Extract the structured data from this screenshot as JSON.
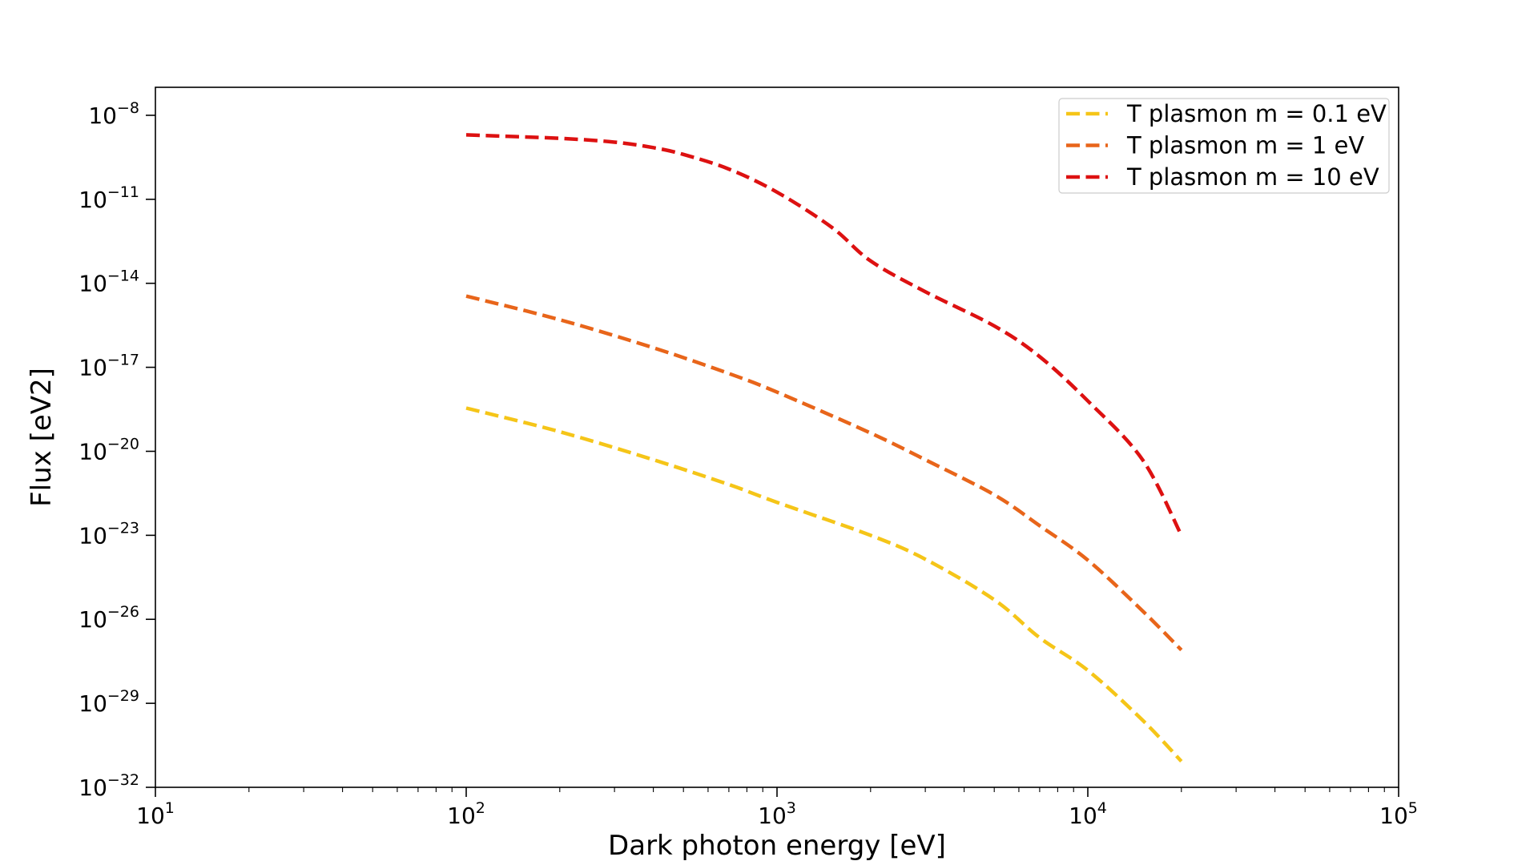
{
  "chart_data": {
    "type": "line",
    "title": "",
    "xlabel": "Dark photon energy [eV]",
    "ylabel": "Flux [eV2]",
    "xscale": "log",
    "yscale": "log",
    "xlim": [
      10,
      100000
    ],
    "ylim": [
      1e-32,
      1e-07
    ],
    "x_tick_labels": [
      {
        "value": 10,
        "base": "10",
        "exp": "1"
      },
      {
        "value": 100,
        "base": "10",
        "exp": "2"
      },
      {
        "value": 1000,
        "base": "10",
        "exp": "3"
      },
      {
        "value": 10000,
        "base": "10",
        "exp": "4"
      },
      {
        "value": 100000,
        "base": "10",
        "exp": "5"
      }
    ],
    "y_tick_labels": [
      {
        "value": 1e-08,
        "base": "10",
        "exp": "−8"
      },
      {
        "value": 1e-11,
        "base": "10",
        "exp": "−11"
      },
      {
        "value": 1e-14,
        "base": "10",
        "exp": "−14"
      },
      {
        "value": 1e-17,
        "base": "10",
        "exp": "−17"
      },
      {
        "value": 1e-20,
        "base": "10",
        "exp": "−20"
      },
      {
        "value": 1e-23,
        "base": "10",
        "exp": "−23"
      },
      {
        "value": 1e-26,
        "base": "10",
        "exp": "−26"
      },
      {
        "value": 1e-29,
        "base": "10",
        "exp": "−29"
      },
      {
        "value": 1e-32,
        "base": "10",
        "exp": "−32"
      }
    ],
    "grid": false,
    "legend_position": "top-right",
    "series": [
      {
        "name": "T plasmon m = 0.1 eV",
        "color": "#f5c518",
        "linestyle": "dashed",
        "x": [
          100,
          200,
          400,
          700,
          1000,
          2000,
          3000,
          5000,
          7000,
          10000,
          15000,
          20000
        ],
        "y": [
          3.5e-19,
          5e-20,
          5e-21,
          6.5e-22,
          1.5e-22,
          1e-23,
          1.4e-24,
          5e-26,
          2.2e-27,
          1.5e-28,
          2.5e-30,
          8.5e-32
        ]
      },
      {
        "name": "T plasmon m = 1 eV",
        "color": "#e8651a",
        "linestyle": "dashed",
        "x": [
          100,
          200,
          400,
          700,
          1000,
          2000,
          3000,
          5000,
          7000,
          10000,
          15000,
          20000
        ],
        "y": [
          3.5e-15,
          5e-16,
          5e-17,
          6e-18,
          1.3e-18,
          4.5e-20,
          5e-21,
          2.8e-22,
          2.2e-23,
          1.3e-24,
          2e-26,
          8e-28
        ]
      },
      {
        "name": "T plasmon m = 10 eV",
        "color": "#dd1111",
        "linestyle": "dashed",
        "x": [
          100,
          200,
          300,
          400,
          500,
          700,
          1000,
          1500,
          2000,
          3000,
          5000,
          7000,
          10000,
          15000,
          20000
        ],
        "y": [
          2e-09,
          1.5e-09,
          1.1e-09,
          7e-10,
          4e-10,
          1.2e-10,
          1.8e-11,
          1e-12,
          6.3e-14,
          5e-15,
          3e-16,
          2.4e-17,
          6.3e-19,
          5e-21,
          1e-23
        ]
      }
    ]
  }
}
